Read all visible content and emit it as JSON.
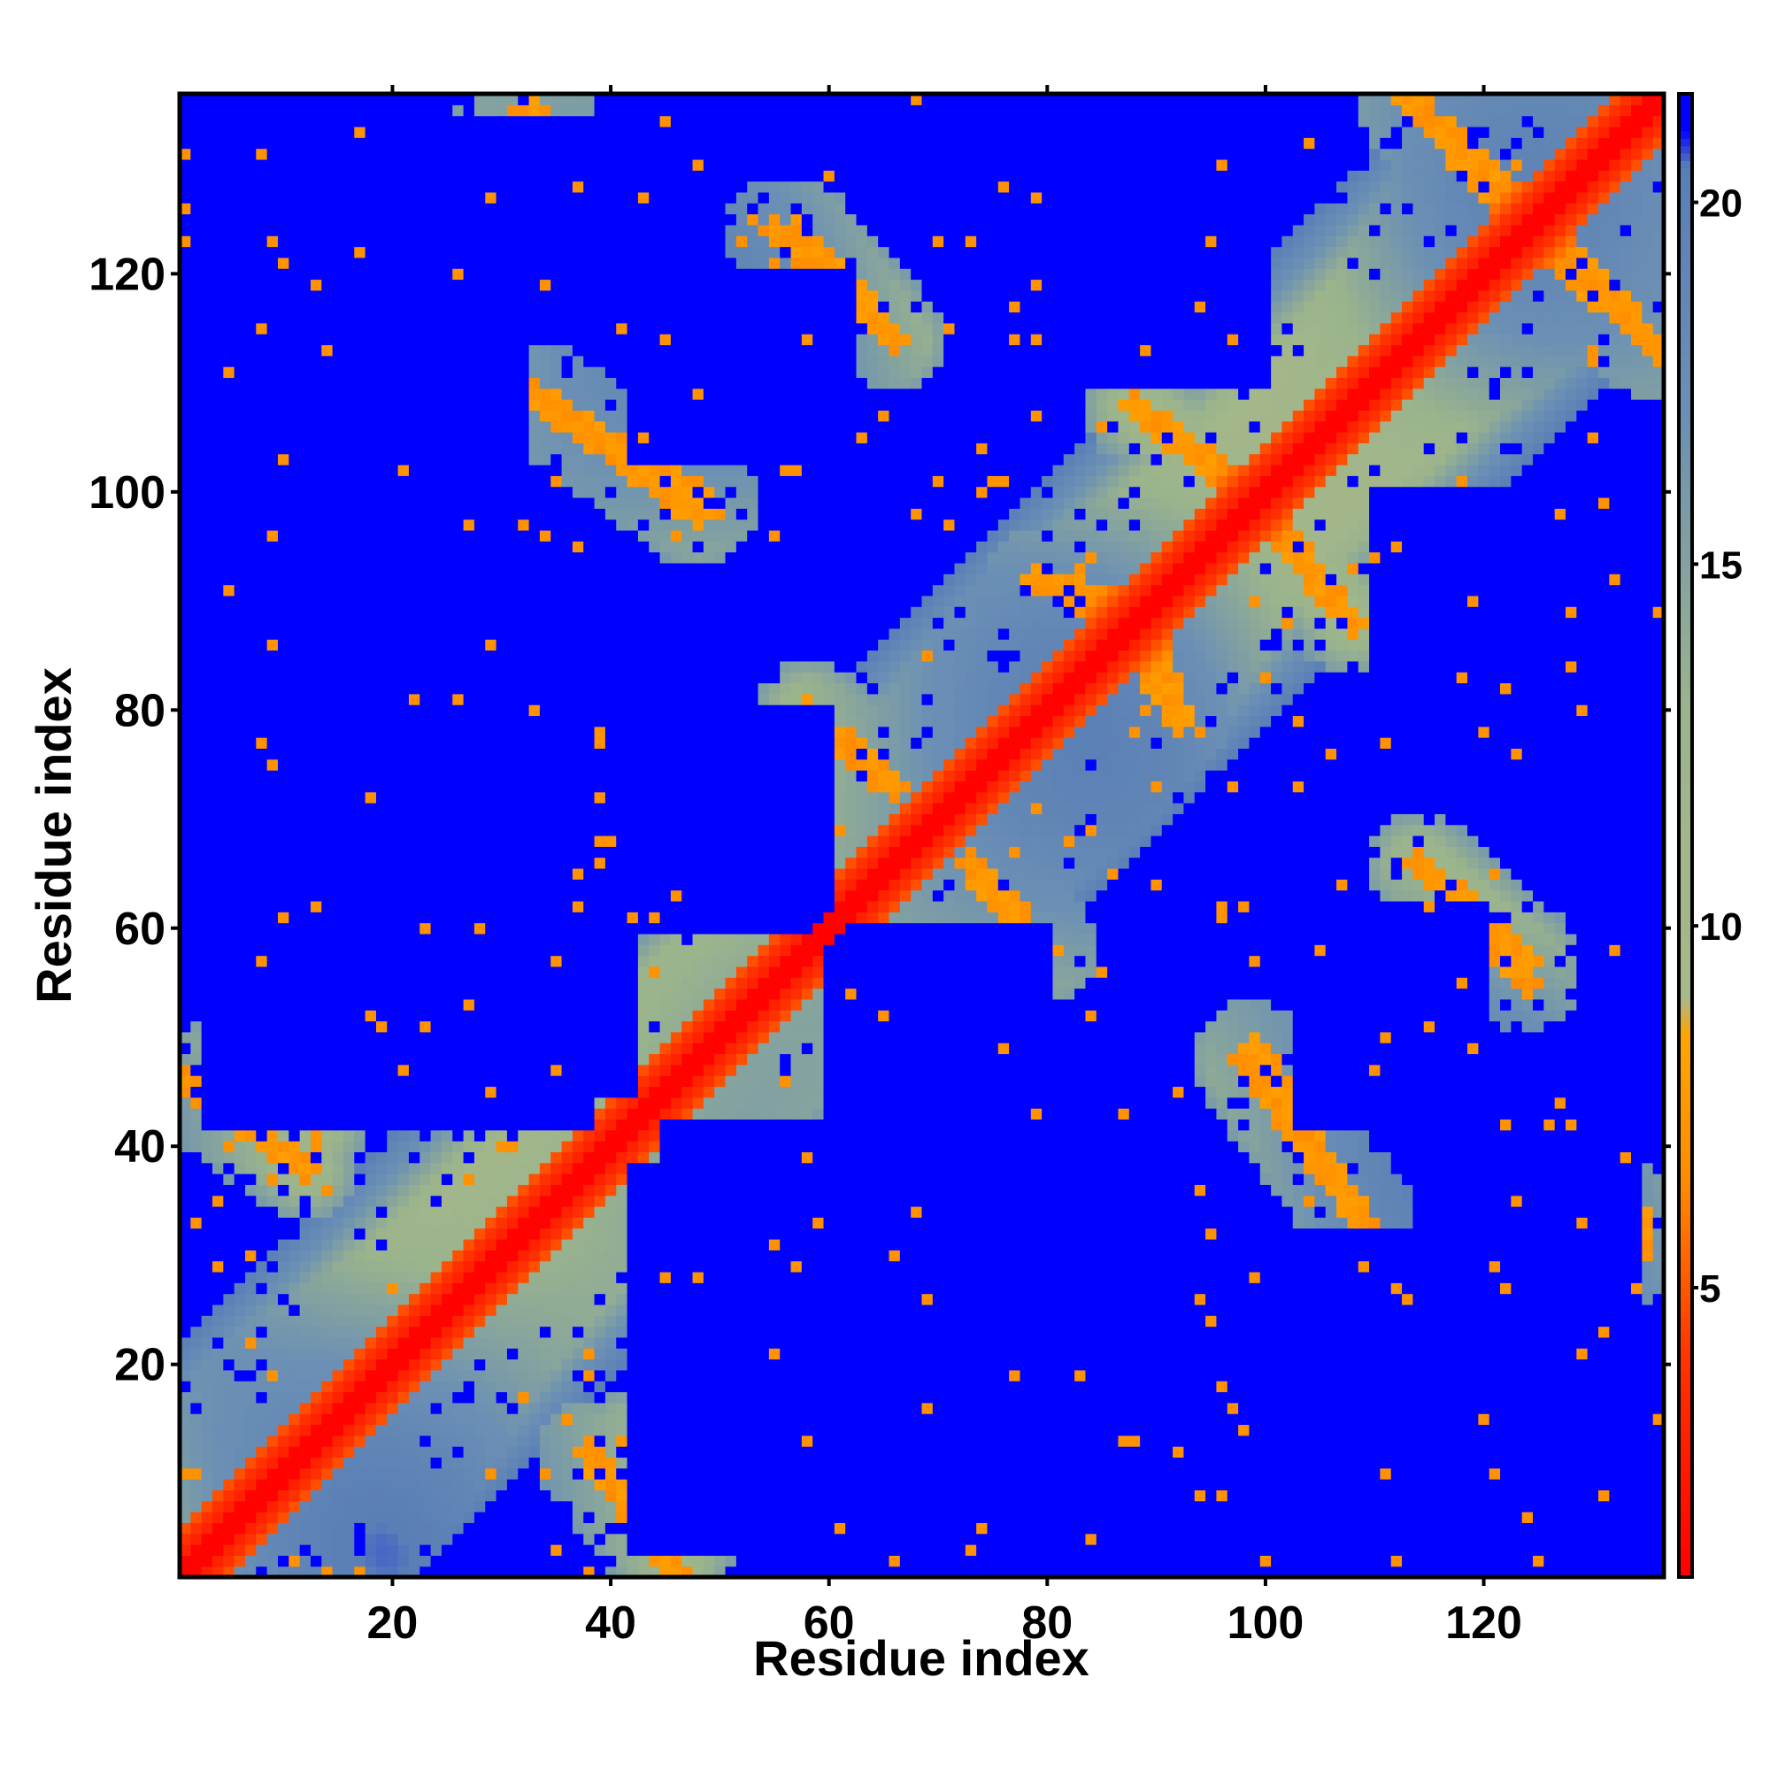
{
  "chart_data": {
    "type": "heatmap",
    "title": "",
    "xlabel": "Residue index",
    "ylabel": "Residue index",
    "x_range": [
      1,
      136
    ],
    "y_range": [
      1,
      136
    ],
    "x_ticks": [
      20,
      40,
      60,
      80,
      100,
      120
    ],
    "y_ticks": [
      20,
      40,
      60,
      80,
      100,
      120
    ],
    "grid": false,
    "colorbar": {
      "position": "right",
      "ticks": [
        5,
        10,
        15,
        20
      ],
      "range": [
        1,
        21.5
      ],
      "stops": [
        {
          "value": 1.0,
          "color": "#ff0000"
        },
        {
          "value": 4.0,
          "color": "#ff3300"
        },
        {
          "value": 6.5,
          "color": "#ff8c00"
        },
        {
          "value": 8.5,
          "color": "#ffa500"
        },
        {
          "value": 9.0,
          "color": "#a8b889"
        },
        {
          "value": 13.0,
          "color": "#9bb48c"
        },
        {
          "value": 17.0,
          "color": "#6c90b4"
        },
        {
          "value": 20.5,
          "color": "#5a7fb6"
        },
        {
          "value": 21.0,
          "color": "#0000ff"
        }
      ]
    },
    "features": {
      "diagonal": {
        "from": 1,
        "to": 136,
        "value": 1.5,
        "width": 3
      },
      "contact_bands": [
        {
          "start": [
            1,
            46
          ],
          "end": [
            12,
            38
          ],
          "value": 7
        },
        {
          "start": [
            42,
            13
          ],
          "end": [
            47,
            4
          ],
          "value": 7
        },
        {
          "start": [
            30,
            133
          ],
          "end": [
            33,
            135
          ],
          "value": 7
        },
        {
          "start": [
            33,
            109
          ],
          "end": [
            48,
            98
          ],
          "value": 7
        },
        {
          "start": [
            55,
            124
          ],
          "end": [
            65,
            115
          ],
          "value": 7
        },
        {
          "start": [
            58,
            80
          ],
          "end": [
            66,
            73
          ],
          "value": 7
        },
        {
          "start": [
            74,
            64
          ],
          "end": [
            80,
            58
          ],
          "value": 7
        },
        {
          "start": [
            88,
            108
          ],
          "end": [
            99,
            99
          ],
          "value": 7
        },
        {
          "start": [
            101,
            97
          ],
          "end": [
            108,
            88
          ],
          "value": 7
        },
        {
          "start": [
            99,
            49
          ],
          "end": [
            107,
            36
          ],
          "value": 7
        },
        {
          "start": [
            114,
            66
          ],
          "end": [
            124,
            57
          ],
          "value": 7
        },
        {
          "start": [
            113,
            136
          ],
          "end": [
            122,
            128
          ],
          "value": 7
        },
        {
          "start": [
            124,
            124
          ],
          "end": [
            135,
            114
          ],
          "value": 7
        },
        {
          "start": [
            131,
            29
          ],
          "end": [
            134,
            34
          ],
          "value": 7
        },
        {
          "start": [
            80,
            92
          ],
          "end": [
            86,
            90
          ],
          "value": 7
        },
        {
          "start": [
            89,
            84
          ],
          "end": [
            92,
            79
          ],
          "value": 7
        }
      ],
      "separated_blocks": [
        {
          "x": [
            10,
            42
          ],
          "y": [
            45,
            62
          ],
          "value": 21
        },
        {
          "x": [
            42,
            60
          ],
          "y": [
            3,
            38
          ],
          "value": 21
        },
        {
          "x": [
            60,
            80
          ],
          "y": [
            40,
            60
          ],
          "value": 21
        },
        {
          "x": [
            82,
            115
          ],
          "y": [
            12,
            32
          ],
          "value": 21
        },
        {
          "x": [
            10,
            38
          ],
          "y": [
            125,
            134
          ],
          "value": 21
        },
        {
          "x": [
            42,
            62
          ],
          "y": [
            103,
            120
          ],
          "value": 21
        },
        {
          "x": [
            84,
            100
          ],
          "y": [
            110,
            132
          ],
          "value": 21
        }
      ]
    }
  }
}
